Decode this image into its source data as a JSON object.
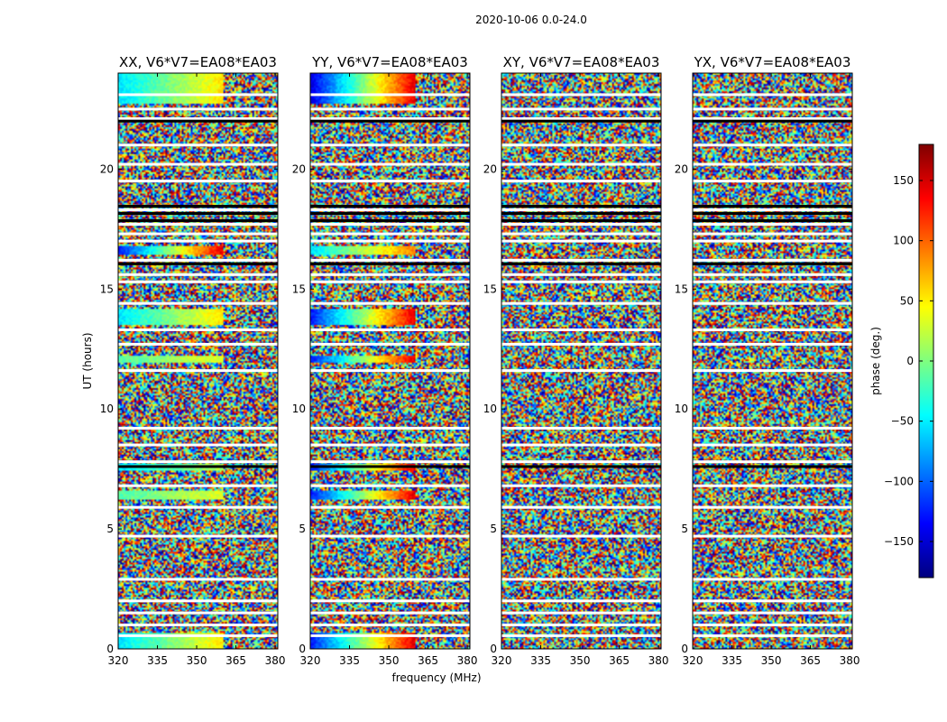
{
  "figure": {
    "suptitle": "2020-10-06 0.0-24.0",
    "xlabel": "frequency (MHz)",
    "ylabel": "UT (hours)"
  },
  "chart_data": {
    "type": "heatmap",
    "colormap": "jet",
    "value_meaning": "visibility phase",
    "color_range": [
      -180,
      180
    ],
    "colorbar": {
      "label": "phase (deg.)",
      "ticks": [
        -150,
        -100,
        -50,
        0,
        50,
        100,
        150
      ]
    },
    "xlim": [
      320,
      381
    ],
    "ylim": [
      0,
      24
    ],
    "xticks": [
      320,
      335,
      350,
      365,
      380
    ],
    "yticks": [
      0,
      5,
      10,
      15,
      20
    ],
    "grid": false,
    "panels": [
      {
        "title": "XX, V6*V7=EA08*EA03",
        "coherent_bands": [
          [
            0.0,
            0.7,
            "cyan-green-yellow"
          ],
          [
            6.2,
            6.6,
            "green"
          ],
          [
            7.4,
            7.7,
            "cyan-green"
          ],
          [
            11.9,
            12.2,
            "green"
          ],
          [
            13.5,
            14.2,
            "cyan-green-yellow"
          ],
          [
            16.4,
            16.8,
            "red-orange-blue"
          ],
          [
            22.7,
            24.0,
            "green-cyan-yellow"
          ]
        ]
      },
      {
        "title": "YY, V6*V7=EA08*EA03",
        "coherent_bands": [
          [
            0.0,
            0.7,
            "red-orange-blue"
          ],
          [
            6.2,
            6.6,
            "red-orange-blue"
          ],
          [
            7.4,
            7.7,
            "red-orange-blue"
          ],
          [
            11.9,
            12.2,
            "red-orange-blue"
          ],
          [
            13.5,
            14.2,
            "red-orange-blue"
          ],
          [
            16.4,
            16.8,
            "cyan-green-orange"
          ],
          [
            22.7,
            24.0,
            "red-blue"
          ]
        ]
      },
      {
        "title": "XY, V6*V7=EA08*EA03",
        "coherent_bands": []
      },
      {
        "title": "YX, V6*V7=EA08*EA03",
        "coherent_bands": []
      }
    ],
    "blank_rows_hours": [
      0.55,
      1.0,
      1.5,
      2.0,
      2.9,
      4.7,
      5.9,
      6.8,
      7.8,
      8.5,
      9.2,
      11.6,
      12.7,
      13.3,
      14.4,
      15.3,
      15.6,
      16.2,
      17.0,
      17.3,
      17.7,
      18.3,
      19.5,
      20.2,
      21.0,
      22.1,
      22.5,
      23.1
    ],
    "black_rows_hours": [
      7.6,
      16.05,
      17.85,
      18.15,
      18.45,
      22.0
    ]
  }
}
